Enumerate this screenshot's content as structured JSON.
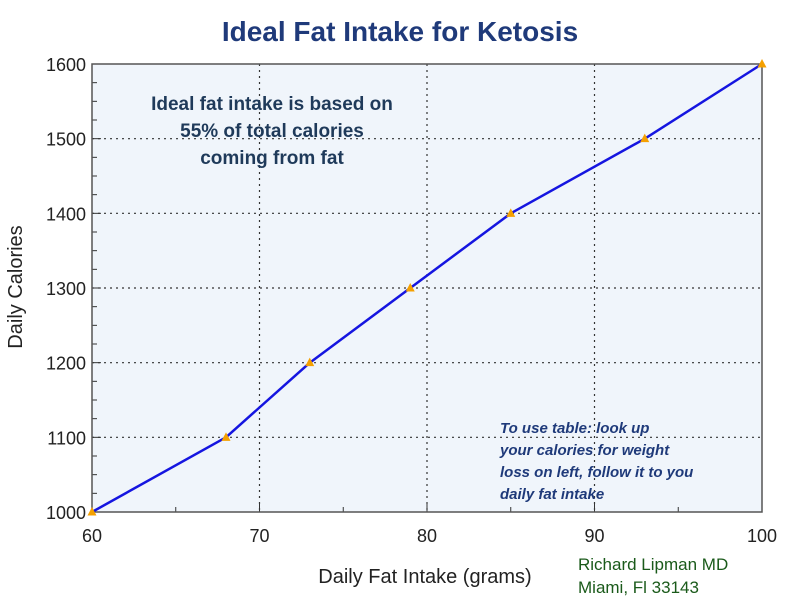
{
  "chart_data": {
    "type": "line",
    "title": "Ideal Fat Intake for Ketosis",
    "xlabel": "Daily Fat Intake (grams)",
    "ylabel": "Daily Calories",
    "xlim": [
      60,
      100
    ],
    "ylim": [
      1000,
      1600
    ],
    "x_ticks": [
      60,
      70,
      80,
      90,
      100
    ],
    "y_ticks": [
      1000,
      1100,
      1200,
      1300,
      1400,
      1500,
      1600
    ],
    "grid": true,
    "line_color": "#1515e0",
    "marker_color": "#f5a000",
    "plot_background": "#f0f5fb",
    "series": [
      {
        "values_x": [
          60,
          68,
          73,
          79,
          85,
          93,
          100
        ],
        "values_y": [
          1000,
          1100,
          1200,
          1300,
          1400,
          1500,
          1600
        ]
      }
    ],
    "annotations": {
      "main": [
        "Ideal fat intake is based on",
        "55% of total calories",
        "coming from fat"
      ],
      "usage": [
        "To use table: look up",
        "your calories  for weight",
        "loss on left, follow it to you",
        "daily fat intake"
      ]
    }
  },
  "credit": {
    "line1": "Richard Lipman MD",
    "line2": "Miami, Fl 33143"
  }
}
